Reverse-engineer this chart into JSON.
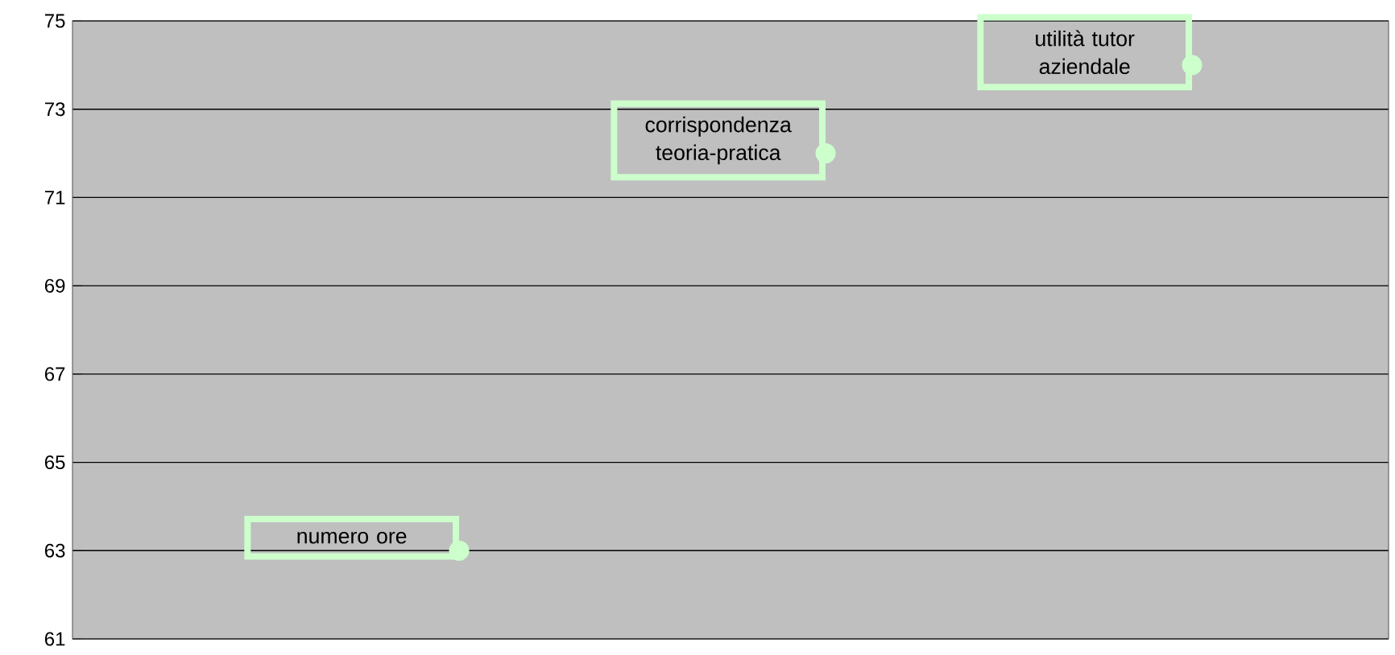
{
  "chart_data": {
    "type": "scatter",
    "categories": [
      null,
      null,
      null
    ],
    "series": [
      {
        "color": "#ccffcc",
        "values": [
          63,
          72,
          74
        ]
      }
    ],
    "ylim": [
      61,
      75
    ],
    "yticks": [
      61,
      63,
      65,
      67,
      69,
      71,
      73,
      75
    ],
    "grid": "y",
    "marker": "circle",
    "tick_labels": "y",
    "annotations": [
      "numero ore",
      "corrispondenza teoria-pratica",
      "utilità tutor aziendale"
    ]
  }
}
